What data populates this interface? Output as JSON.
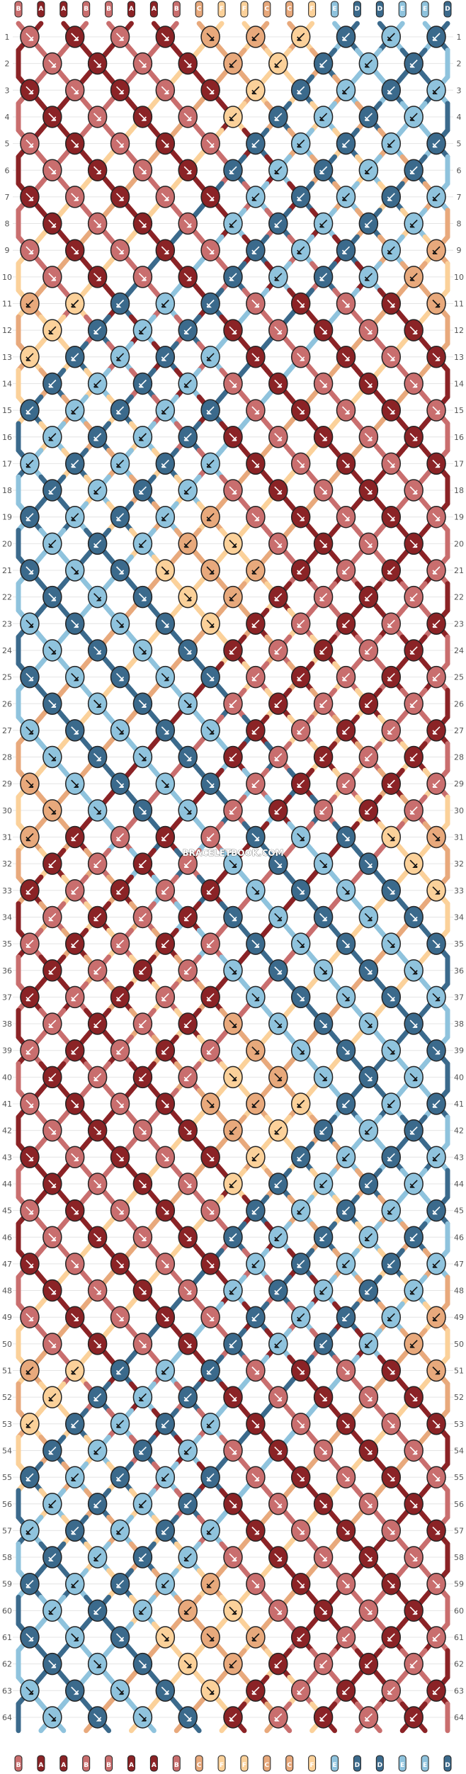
{
  "watermark": "BRACELETBOOK.COM",
  "strings": {
    "top_labels": [
      "B",
      "A",
      "A",
      "B",
      "B",
      "A",
      "A",
      "B",
      "C",
      "F",
      "F",
      "C",
      "C",
      "F",
      "E",
      "D",
      "D",
      "E",
      "E",
      "D"
    ],
    "bottom_labels": [
      "B",
      "A",
      "A",
      "B",
      "B",
      "A",
      "A",
      "B",
      "C",
      "F",
      "F",
      "C",
      "C",
      "F",
      "E",
      "D",
      "D",
      "E",
      "E",
      "D"
    ]
  },
  "row_numbers": [
    "1",
    "2",
    "3",
    "4",
    "5",
    "6",
    "7",
    "8",
    "9",
    "10",
    "11",
    "12",
    "13",
    "14",
    "15",
    "16",
    "17",
    "18",
    "19",
    "20",
    "21",
    "22",
    "23",
    "24",
    "25",
    "26",
    "27",
    "28",
    "29",
    "30",
    "31",
    "32",
    "33",
    "34",
    "35",
    "36",
    "37",
    "38",
    "39",
    "40",
    "41",
    "42",
    "43",
    "44",
    "45",
    "46",
    "47",
    "48",
    "49",
    "50",
    "51",
    "52",
    "53",
    "54",
    "55",
    "56",
    "57",
    "58",
    "59",
    "60",
    "61",
    "62",
    "63",
    "64"
  ],
  "colors": {
    "A": "#8B2326",
    "B": "#C96E6E",
    "C": "#E8A97C",
    "D": "#3B6A8C",
    "E": "#8FC3DD",
    "F": "#FBD19A",
    "outline": "#222222",
    "arrow_light": "#ffffff",
    "arrow_dark": "#111111"
  },
  "string_order": [
    "B",
    "A",
    "A",
    "B",
    "B",
    "A",
    "A",
    "B",
    "C",
    "F",
    "F",
    "C",
    "C",
    "F",
    "E",
    "D",
    "D",
    "E",
    "E",
    "D"
  ]
}
